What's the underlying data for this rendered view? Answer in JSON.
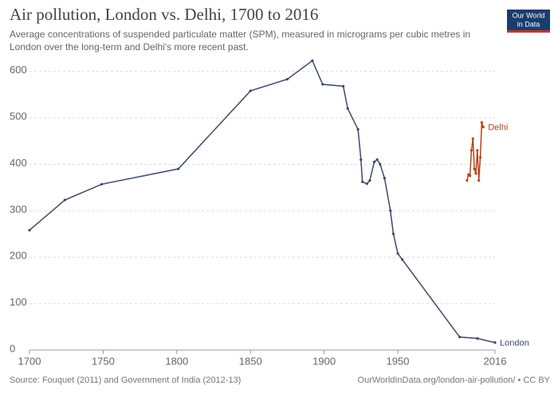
{
  "chart_data": {
    "type": "line",
    "title": "Air pollution, London vs. Delhi, 1700 to 2016",
    "subtitle": [
      "Average concentrations of suspended particulate matter (SPM), measured in micrograms per cubic metres in",
      "London over the long-term and Delhi's more recent past."
    ],
    "logo": [
      "Our World",
      "in Data"
    ],
    "source": "Source: Fouquet (2011) and Government of India (2012-13)",
    "footer_right": "OurWorldInData.org/london-air-pollution/ • CC BY",
    "xlim": [
      1700,
      2016
    ],
    "xticks": [
      1700,
      1750,
      1800,
      1850,
      1900,
      1950,
      2016
    ],
    "ylim": [
      0,
      620
    ],
    "yticks": [
      0,
      100,
      200,
      300,
      400,
      500,
      600
    ],
    "grid": true,
    "series": [
      {
        "name": "London",
        "color": "#3b4a69",
        "x": [
          1700,
          1724,
          1749,
          1801,
          1850,
          1875,
          1892,
          1899,
          1913,
          1916,
          1923,
          1925,
          1926,
          1929,
          1931,
          1934,
          1936,
          1938,
          1941,
          1945,
          1947,
          1950,
          1953,
          1992,
          2004,
          2016
        ],
        "values": [
          258,
          323,
          357,
          390,
          558,
          583,
          623,
          572,
          568,
          520,
          475,
          410,
          362,
          358,
          365,
          405,
          410,
          400,
          370,
          300,
          250,
          208,
          195,
          28,
          25,
          16
        ]
      },
      {
        "name": "Delhi",
        "color": "#b5441b",
        "x": [
          1997,
          1998,
          1999,
          2000,
          2001,
          2002,
          2003,
          2004,
          2005,
          2006,
          2007,
          2008
        ],
        "values": [
          365,
          378,
          375,
          430,
          455,
          390,
          380,
          430,
          365,
          415,
          490,
          480
        ]
      }
    ]
  }
}
